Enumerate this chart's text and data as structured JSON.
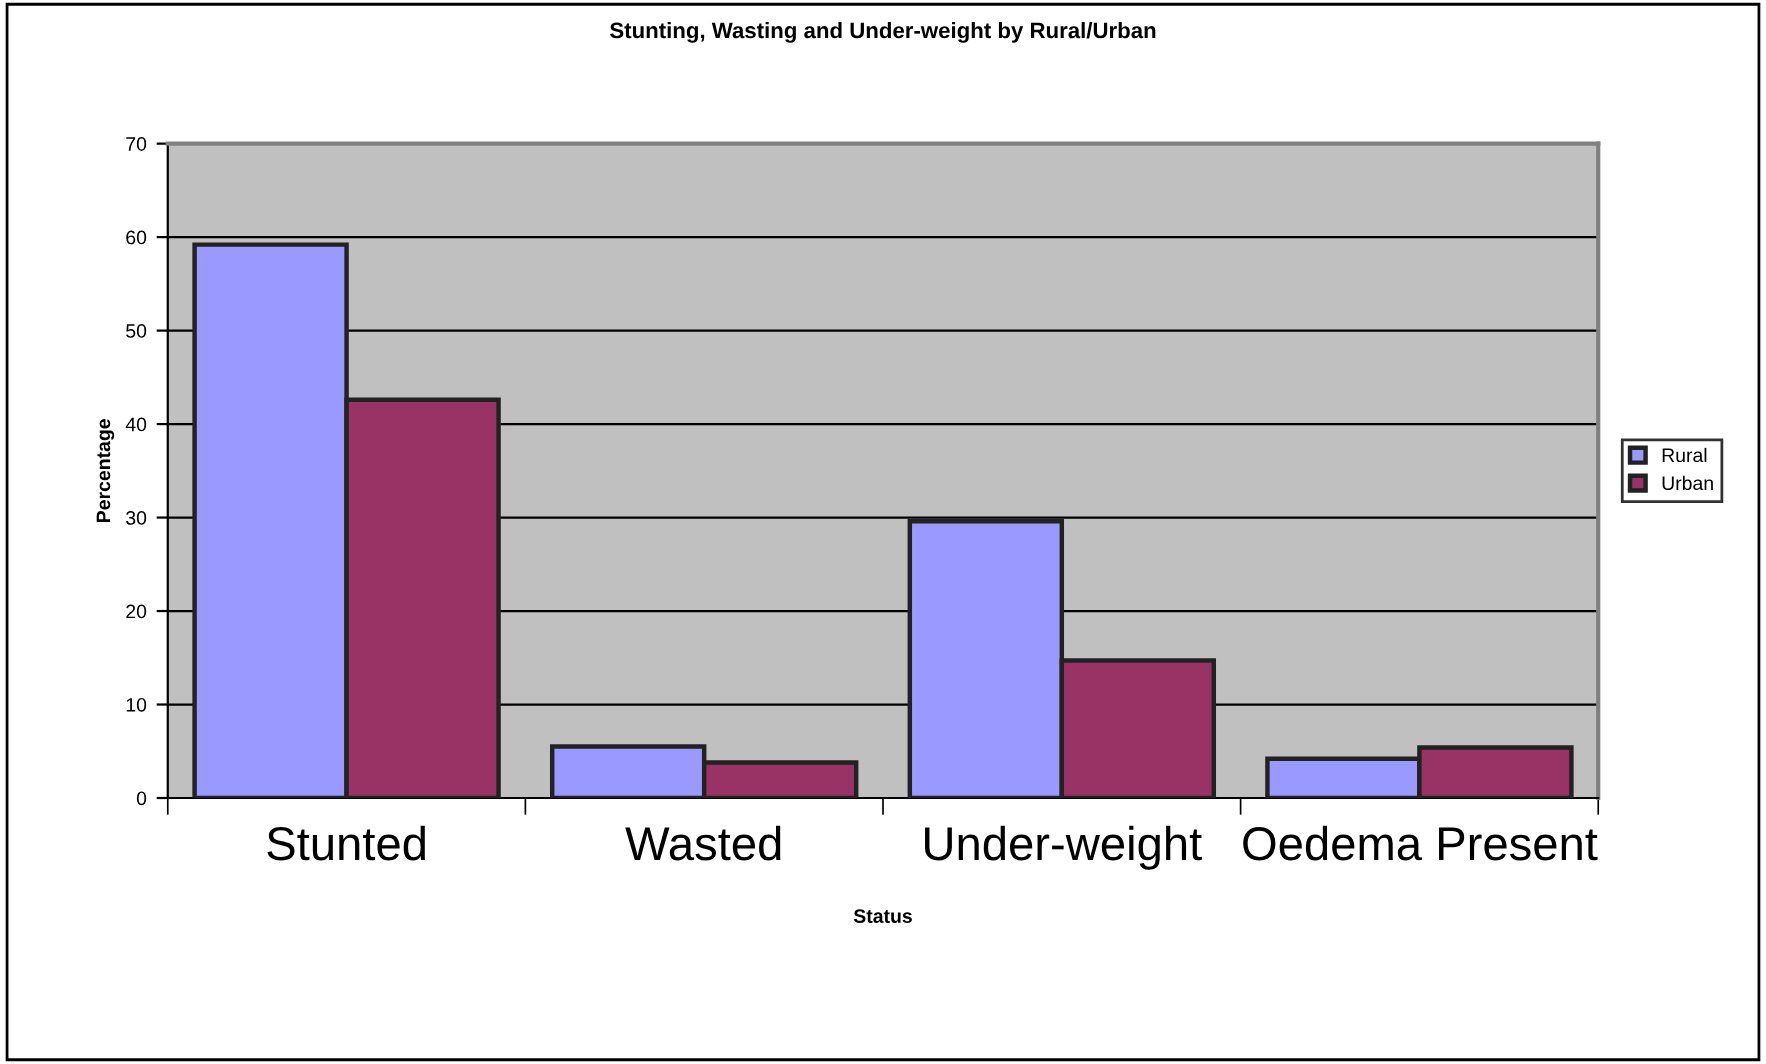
{
  "chart_data": {
    "type": "bar",
    "title": "Stunting, Wasting and Under-weight by Rural/Urban",
    "xlabel": "Status",
    "ylabel": "Percentage",
    "categories": [
      "Stunted",
      "Wasted",
      "Under-weight",
      "Oedema Present"
    ],
    "series": [
      {
        "name": "Rural",
        "color": "#9999ff",
        "values": [
          59.2,
          5.5,
          29.6,
          4.2
        ]
      },
      {
        "name": "Urban",
        "color": "#993366",
        "values": [
          42.6,
          3.8,
          14.7,
          5.4
        ]
      }
    ],
    "ylim": [
      0,
      70
    ],
    "yticks": [
      0,
      10,
      20,
      30,
      40,
      50,
      60,
      70
    ],
    "grid": "y",
    "legend": "right"
  }
}
